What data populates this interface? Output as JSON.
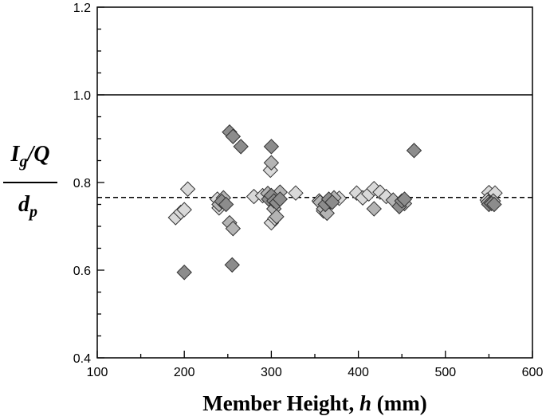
{
  "chart_data": {
    "type": "scatter",
    "title": "",
    "xlabel": {
      "main": "Member Height, ",
      "var": "h",
      "unit": " (mm)"
    },
    "ylabel": {
      "num_I": "I",
      "num_sub": "g",
      "num_rest": "/Q",
      "den_d": "d",
      "den_sub": "p"
    },
    "xlim": [
      100,
      600
    ],
    "ylim": [
      0.4,
      1.2
    ],
    "xticks": [
      100,
      200,
      300,
      400,
      500,
      600
    ],
    "xtick_labels": [
      "100",
      "200",
      "300",
      "400",
      "500",
      "600"
    ],
    "yticks": [
      0.4,
      0.6,
      0.8,
      1.0,
      1.2
    ],
    "ytick_labels": [
      "0.4",
      "0.6",
      "0.8",
      "1.0",
      "1.2"
    ],
    "reference_lines": [
      {
        "style": "solid",
        "y": 1.0
      },
      {
        "style": "dashed",
        "y": 0.766
      }
    ],
    "grid": false,
    "legend": "none",
    "colors": {
      "dark": "#8c8c8c",
      "mid": "#b4b4b4",
      "light": "#d9d9d9",
      "edge": "#333333"
    },
    "series": [
      {
        "shade": "dark",
        "points": [
          [
            200,
            0.595
          ],
          [
            255,
            0.612
          ],
          [
            252,
            0.915
          ],
          [
            256,
            0.905
          ],
          [
            265,
            0.882
          ],
          [
            300,
            0.882
          ],
          [
            243,
            0.757
          ],
          [
            248,
            0.75
          ],
          [
            297,
            0.762
          ],
          [
            300,
            0.77
          ],
          [
            303,
            0.758
          ],
          [
            306,
            0.754
          ],
          [
            310,
            0.762
          ],
          [
            362,
            0.75
          ],
          [
            366,
            0.762
          ],
          [
            370,
            0.755
          ],
          [
            447,
            0.745
          ],
          [
            450,
            0.758
          ],
          [
            453,
            0.762
          ],
          [
            464,
            0.873
          ],
          [
            550,
            0.75
          ],
          [
            553,
            0.752
          ],
          [
            556,
            0.75
          ]
        ]
      },
      {
        "shade": "mid",
        "points": [
          [
            240,
            0.75
          ],
          [
            245,
            0.765
          ],
          [
            252,
            0.708
          ],
          [
            256,
            0.695
          ],
          [
            300,
            0.845
          ],
          [
            296,
            0.775
          ],
          [
            300,
            0.77
          ],
          [
            303,
            0.74
          ],
          [
            306,
            0.722
          ],
          [
            310,
            0.778
          ],
          [
            356,
            0.755
          ],
          [
            360,
            0.74
          ],
          [
            364,
            0.73
          ],
          [
            372,
            0.765
          ],
          [
            418,
            0.74
          ],
          [
            440,
            0.76
          ],
          [
            453,
            0.752
          ],
          [
            549,
            0.755
          ],
          [
            555,
            0.758
          ]
        ]
      },
      {
        "shade": "light",
        "points": [
          [
            190,
            0.72
          ],
          [
            196,
            0.732
          ],
          [
            200,
            0.738
          ],
          [
            204,
            0.785
          ],
          [
            238,
            0.762
          ],
          [
            240,
            0.742
          ],
          [
            280,
            0.768
          ],
          [
            290,
            0.77
          ],
          [
            299,
            0.828
          ],
          [
            300,
            0.708
          ],
          [
            304,
            0.718
          ],
          [
            328,
            0.776
          ],
          [
            355,
            0.758
          ],
          [
            360,
            0.735
          ],
          [
            378,
            0.764
          ],
          [
            398,
            0.776
          ],
          [
            405,
            0.765
          ],
          [
            412,
            0.774
          ],
          [
            418,
            0.786
          ],
          [
            425,
            0.778
          ],
          [
            432,
            0.768
          ],
          [
            550,
            0.777
          ],
          [
            557,
            0.776
          ],
          [
            548,
            0.76
          ]
        ]
      }
    ]
  }
}
